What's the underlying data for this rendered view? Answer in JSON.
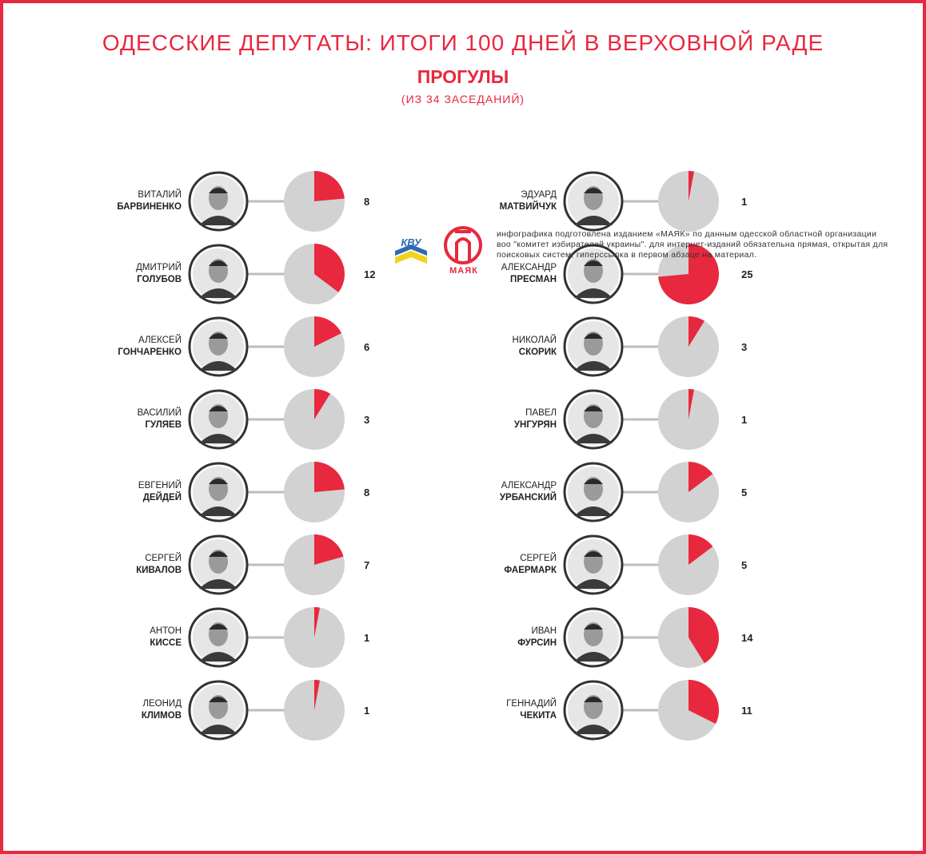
{
  "header": {
    "title": "ОДЕССКИЕ ДЕПУТАТЫ: ИТОГИ 100 ДНЕЙ В ВЕРХОВНОЙ РАДЕ",
    "subtitle": "ПРОГУЛЫ",
    "note": "(ИЗ 34 ЗАСЕДАНИЙ)"
  },
  "colors": {
    "accent": "#e8283e",
    "pie_rest": "#d2d2d2",
    "connector": "#bdbdbd"
  },
  "chart_data": {
    "type": "pie",
    "total": 34,
    "left_column": [
      {
        "first_name": "ВИТАЛИЙ",
        "last_name": "БАРВИНЕНКО",
        "value": 8
      },
      {
        "first_name": "ДМИТРИЙ",
        "last_name": "ГОЛУБОВ",
        "value": 12
      },
      {
        "first_name": "АЛЕКСЕЙ",
        "last_name": "ГОНЧАРЕНКО",
        "value": 6
      },
      {
        "first_name": "ВАСИЛИЙ",
        "last_name": "ГУЛЯЕВ",
        "value": 3
      },
      {
        "first_name": "ЕВГЕНИЙ",
        "last_name": "ДЕЙДЕЙ",
        "value": 8
      },
      {
        "first_name": "СЕРГЕЙ",
        "last_name": "КИВАЛОВ",
        "value": 7
      },
      {
        "first_name": "АНТОН",
        "last_name": "КИССЕ",
        "value": 1
      },
      {
        "first_name": "ЛЕОНИД",
        "last_name": "КЛИМОВ",
        "value": 1
      }
    ],
    "right_column": [
      {
        "first_name": "ЭДУАРД",
        "last_name": "МАТВИЙЧУК",
        "value": 1
      },
      {
        "first_name": "АЛЕКСАНДР",
        "last_name": "ПРЕСМАН",
        "value": 25
      },
      {
        "first_name": "НИКОЛАЙ",
        "last_name": "СКОРИК",
        "value": 3
      },
      {
        "first_name": "ПАВЕЛ",
        "last_name": "УНГУРЯН",
        "value": 1
      },
      {
        "first_name": "АЛЕКСАНДР",
        "last_name": "УРБАНСКИЙ",
        "value": 5
      },
      {
        "first_name": "СЕРГЕЙ",
        "last_name": "ФАЕРМАРК",
        "value": 5
      },
      {
        "first_name": "ИВАН",
        "last_name": "ФУРСИН",
        "value": 14
      },
      {
        "first_name": "ГЕННАДИЙ",
        "last_name": "ЧЕКИТА",
        "value": 11
      }
    ]
  },
  "footer": {
    "logo_a_text": "КВУ",
    "logo_b_text": "МАЯК",
    "credits": "инфографика подготовлена изданием «МАЯК» по данным одесской областной организации воо \"комитет избирателей украины\". для интернет-изданий обязательна прямая, открытая для поисковых систем, гиперссылка в первом абзаце на материал."
  }
}
